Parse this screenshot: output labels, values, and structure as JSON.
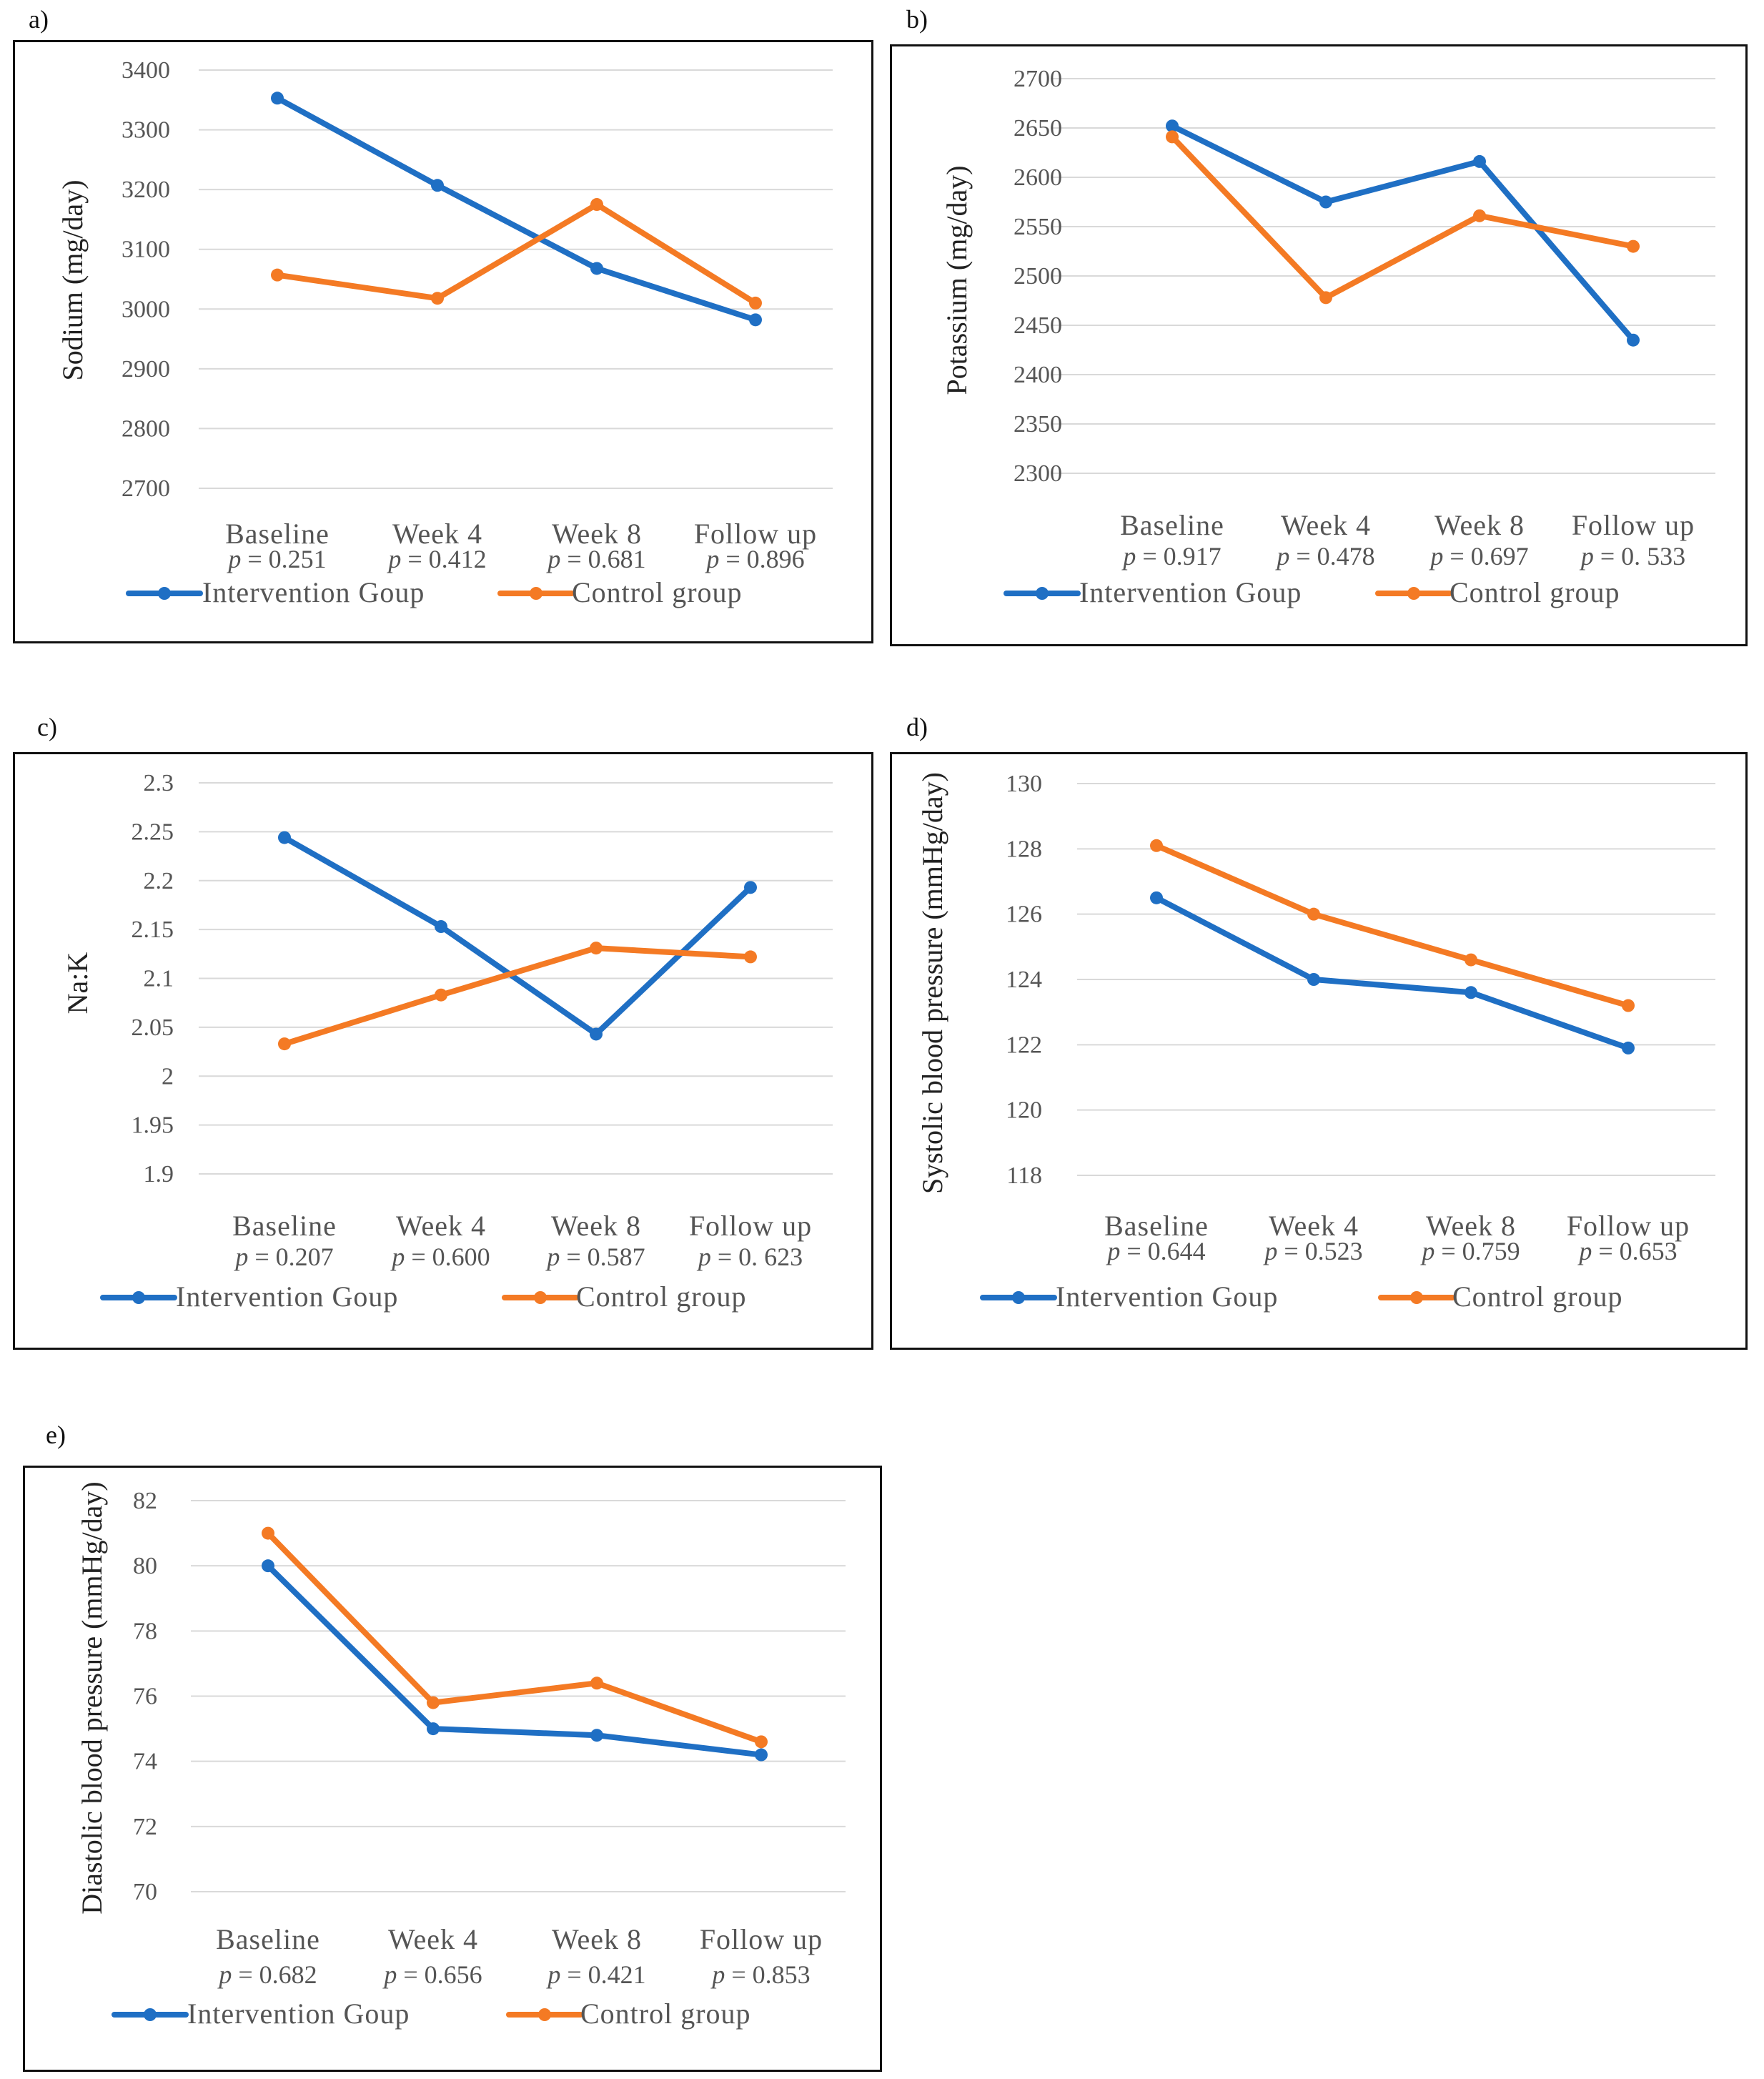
{
  "legend": {
    "intervention": "Intervention Goup",
    "control": "Control group"
  },
  "colors": {
    "intervention": "#1f6fc4",
    "control": "#f47a24",
    "grid": "#d9d9d9"
  },
  "chart_data": [
    {
      "id": "a",
      "panel_label": "a)",
      "type": "line",
      "ylabel": "Sodium (mg/day)",
      "categories": [
        "Baseline",
        "Week 4",
        "Week 8",
        "Follow up"
      ],
      "p_values": [
        "0.251",
        "0.412",
        "0.681",
        "0.896"
      ],
      "yticks": [
        "3400",
        "3300",
        "3200",
        "3100",
        "3000",
        "2900",
        "2800",
        "2700"
      ],
      "ylim": [
        2700,
        3400
      ],
      "series": [
        {
          "name": "Intervention Goup",
          "values": [
            3353,
            3207,
            3068,
            2982
          ]
        },
        {
          "name": "Control group",
          "values": [
            3057,
            3018,
            3175,
            3010
          ]
        }
      ]
    },
    {
      "id": "b",
      "panel_label": "b)",
      "type": "line",
      "ylabel": "Potassium (mg/day)",
      "categories": [
        "Baseline",
        "Week 4",
        "Week 8",
        "Follow up"
      ],
      "p_values": [
        "0.917",
        "0.478",
        "0.697",
        "0. 533"
      ],
      "yticks": [
        "2700",
        "2650",
        "2600",
        "2550",
        "2500",
        "2450",
        "2400",
        "2350",
        "2300"
      ],
      "ylim": [
        2300,
        2700
      ],
      "series": [
        {
          "name": "Intervention Goup",
          "values": [
            2652,
            2575,
            2616,
            2435
          ]
        },
        {
          "name": "Control group",
          "values": [
            2641,
            2478,
            2561,
            2530
          ]
        }
      ]
    },
    {
      "id": "c",
      "panel_label": "c)",
      "type": "line",
      "ylabel": "Na:K",
      "categories": [
        "Baseline",
        "Week 4",
        "Week 8",
        "Follow up"
      ],
      "p_values": [
        "0.207",
        "0.600",
        "0.587",
        "0. 623"
      ],
      "yticks": [
        "2.3",
        "2.25",
        "2.2",
        "2.15",
        "2.1",
        "2.05",
        "2",
        "1.95",
        "1.9"
      ],
      "ylim": [
        1.9,
        2.3
      ],
      "series": [
        {
          "name": "Intervention Goup",
          "values": [
            2.244,
            2.153,
            2.043,
            2.193
          ]
        },
        {
          "name": "Control group",
          "values": [
            2.033,
            2.083,
            2.131,
            2.122
          ]
        }
      ]
    },
    {
      "id": "d",
      "panel_label": "d)",
      "type": "line",
      "ylabel": "Systolic blood pressure (mmHg/day)",
      "categories": [
        "Baseline",
        "Week 4",
        "Week 8",
        "Follow up"
      ],
      "p_values": [
        "0.644",
        "0.523",
        "0.759",
        "0.653"
      ],
      "yticks": [
        "130",
        "128",
        "126",
        "124",
        "122",
        "120",
        "118"
      ],
      "ylim": [
        118,
        130
      ],
      "series": [
        {
          "name": "Intervention Goup",
          "values": [
            126.5,
            124.0,
            123.6,
            121.9
          ]
        },
        {
          "name": "Control group",
          "values": [
            128.1,
            126.0,
            124.6,
            123.2
          ]
        }
      ]
    },
    {
      "id": "e",
      "panel_label": "e)",
      "type": "line",
      "ylabel": "Diastolic blood pressure (mmHg/day)",
      "categories": [
        "Baseline",
        "Week 4",
        "Week 8",
        "Follow up"
      ],
      "p_values": [
        "0.682",
        "0.656",
        "0.421",
        "0.853"
      ],
      "yticks": [
        "82",
        "80",
        "78",
        "76",
        "74",
        "72",
        "70"
      ],
      "ylim": [
        70,
        82
      ],
      "series": [
        {
          "name": "Intervention Goup",
          "values": [
            80.0,
            75.0,
            74.8,
            74.2
          ]
        },
        {
          "name": "Control group",
          "values": [
            81.0,
            75.8,
            76.4,
            74.6
          ]
        }
      ]
    }
  ]
}
